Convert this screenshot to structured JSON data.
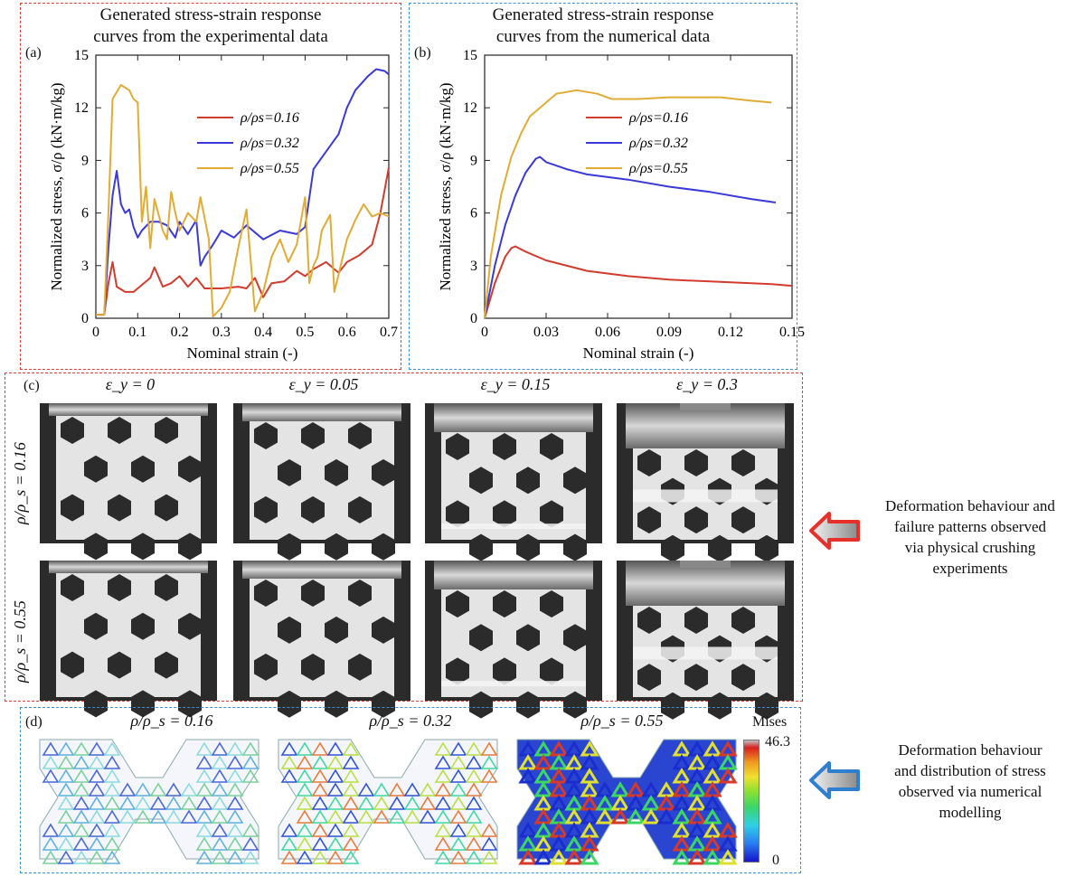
{
  "panel_a": {
    "letter": "(a)",
    "title_line1": "Generated stress-strain response",
    "title_line2": "curves from the experimental data"
  },
  "panel_b": {
    "letter": "(b)",
    "title_line1": "Generated stress-strain response",
    "title_line2": "curves from the numerical data"
  },
  "panel_c": {
    "letter": "(c)",
    "columns": [
      "ε_y = 0",
      "ε_y = 0.05",
      "ε_y = 0.15",
      "ε_y = 0.3"
    ],
    "rows": [
      "ρ/ρ_s = 0.16",
      "ρ/ρ_s = 0.55"
    ]
  },
  "panel_d": {
    "letter": "(d)",
    "labels": [
      "ρ/ρ_s = 0.16",
      "ρ/ρ_s = 0.32",
      "ρ/ρ_s = 0.55"
    ],
    "colorbar": {
      "title": "Mises",
      "max": "46.3",
      "min": "0"
    }
  },
  "notes": {
    "experiment": [
      "Deformation behaviour and",
      "failure patterns observed",
      "via physical crushing",
      "experiments"
    ],
    "numerical": [
      "Deformation behaviour",
      "and distribution of stress",
      "observed via numerical",
      "modelling"
    ]
  },
  "colors": {
    "red_series": "#d23c2e",
    "blue_series": "#3a3ad8",
    "yellow_series": "#e0ac35",
    "red_arrow": "#e8302a",
    "blue_arrow": "#2e7fd0"
  },
  "chart_data": [
    {
      "type": "line",
      "xlabel": "Nominal strain (-)",
      "ylabel": "Normalized stress, σ/ρ (kN·m/kg)",
      "xlim": [
        0,
        0.7
      ],
      "ylim": [
        0,
        15
      ],
      "xticks": [
        0,
        0.1,
        0.2,
        0.3,
        0.4,
        0.5,
        0.6,
        0.7
      ],
      "yticks": [
        0,
        3,
        6,
        9,
        12,
        15
      ],
      "legend_position": "center-right",
      "series": [
        {
          "name": "ρ/ρs=0.16",
          "color": "#d23c2e",
          "x": [
            0,
            0.02,
            0.03,
            0.04,
            0.05,
            0.07,
            0.09,
            0.11,
            0.13,
            0.14,
            0.16,
            0.18,
            0.2,
            0.22,
            0.24,
            0.26,
            0.3,
            0.34,
            0.36,
            0.38,
            0.4,
            0.42,
            0.45,
            0.48,
            0.5,
            0.52,
            0.55,
            0.58,
            0.6,
            0.63,
            0.66,
            0.68,
            0.7
          ],
          "y": [
            0.2,
            0.2,
            2.0,
            3.2,
            1.8,
            1.5,
            1.5,
            1.9,
            2.3,
            2.9,
            1.8,
            2.0,
            2.4,
            1.8,
            2.3,
            1.7,
            1.7,
            1.8,
            1.7,
            2.3,
            1.2,
            2.0,
            2.1,
            2.7,
            2.4,
            2.8,
            3.2,
            2.6,
            3.2,
            3.6,
            4.2,
            6.0,
            8.6
          ]
        },
        {
          "name": "ρ/ρs=0.32",
          "color": "#3a3ad8",
          "x": [
            0,
            0.02,
            0.03,
            0.04,
            0.05,
            0.06,
            0.07,
            0.08,
            0.09,
            0.1,
            0.11,
            0.13,
            0.15,
            0.17,
            0.19,
            0.2,
            0.22,
            0.24,
            0.25,
            0.26,
            0.28,
            0.3,
            0.33,
            0.36,
            0.4,
            0.44,
            0.48,
            0.5,
            0.52,
            0.55,
            0.58,
            0.6,
            0.62,
            0.65,
            0.67,
            0.69,
            0.7
          ],
          "y": [
            0.2,
            0.2,
            4.0,
            7.0,
            8.4,
            6.5,
            6.0,
            6.2,
            5.2,
            4.6,
            5.0,
            5.5,
            5.5,
            5.3,
            4.6,
            5.5,
            4.8,
            5.6,
            3.0,
            3.5,
            4.2,
            5.0,
            4.6,
            5.3,
            4.5,
            5.0,
            4.8,
            5.2,
            8.5,
            9.5,
            10.5,
            12.0,
            13.0,
            13.8,
            14.2,
            14.1,
            13.9
          ]
        },
        {
          "name": "ρ/ρs=0.55",
          "color": "#e0ac35",
          "x": [
            0,
            0.02,
            0.03,
            0.04,
            0.06,
            0.08,
            0.09,
            0.1,
            0.11,
            0.12,
            0.13,
            0.14,
            0.16,
            0.17,
            0.18,
            0.19,
            0.2,
            0.22,
            0.24,
            0.25,
            0.27,
            0.28,
            0.3,
            0.32,
            0.34,
            0.36,
            0.38,
            0.4,
            0.42,
            0.44,
            0.46,
            0.48,
            0.5,
            0.51,
            0.52,
            0.53,
            0.54,
            0.56,
            0.57,
            0.58,
            0.6,
            0.62,
            0.64,
            0.66,
            0.68,
            0.7
          ],
          "y": [
            0.2,
            0.2,
            6.0,
            12.5,
            13.3,
            13.0,
            12.5,
            12.3,
            5.5,
            7.5,
            4.0,
            6.8,
            5.0,
            4.5,
            7.2,
            6.0,
            5.0,
            6.0,
            5.5,
            6.9,
            4.5,
            0.1,
            0.6,
            1.5,
            4.0,
            6.2,
            0.4,
            1.5,
            3.5,
            4.5,
            3.2,
            4.2,
            6.9,
            2.0,
            3.0,
            3.5,
            5.0,
            5.9,
            1.5,
            2.5,
            4.5,
            5.6,
            6.5,
            5.8,
            6.0,
            5.8
          ]
        }
      ]
    },
    {
      "type": "line",
      "xlabel": "Nominal strain (-)",
      "ylabel": "Normalized stress, σ/ρ (kN·m/kg)",
      "xlim": [
        0,
        0.15
      ],
      "ylim": [
        0,
        15
      ],
      "xticks": [
        0,
        0.03,
        0.06,
        0.09,
        0.12,
        0.15
      ],
      "yticks": [
        0,
        3,
        6,
        9,
        12,
        15
      ],
      "legend_position": "center-right",
      "series": [
        {
          "name": "ρ/ρs=0.16",
          "color": "#d23c2e",
          "x": [
            0,
            0.005,
            0.01,
            0.013,
            0.015,
            0.02,
            0.03,
            0.05,
            0.07,
            0.09,
            0.11,
            0.13,
            0.14,
            0.15
          ],
          "y": [
            0,
            2.0,
            3.5,
            4.0,
            4.1,
            3.8,
            3.3,
            2.7,
            2.4,
            2.2,
            2.1,
            2.0,
            1.95,
            1.85
          ]
        },
        {
          "name": "ρ/ρs=0.32",
          "color": "#3a3ad8",
          "x": [
            0,
            0.005,
            0.01,
            0.015,
            0.02,
            0.025,
            0.027,
            0.03,
            0.04,
            0.05,
            0.07,
            0.09,
            0.11,
            0.13,
            0.142
          ],
          "y": [
            0,
            3.0,
            5.3,
            7.0,
            8.3,
            9.1,
            9.2,
            8.9,
            8.5,
            8.2,
            7.9,
            7.5,
            7.2,
            6.8,
            6.6
          ]
        },
        {
          "name": "ρ/ρs=0.55",
          "color": "#e0ac35",
          "x": [
            0,
            0.003,
            0.008,
            0.013,
            0.018,
            0.022,
            0.03,
            0.035,
            0.045,
            0.055,
            0.062,
            0.075,
            0.09,
            0.1,
            0.115,
            0.13,
            0.14
          ],
          "y": [
            0,
            3.5,
            7.0,
            9.2,
            10.6,
            11.5,
            12.3,
            12.8,
            13.0,
            12.8,
            12.5,
            12.5,
            12.6,
            12.6,
            12.6,
            12.4,
            12.3
          ]
        }
      ]
    }
  ]
}
